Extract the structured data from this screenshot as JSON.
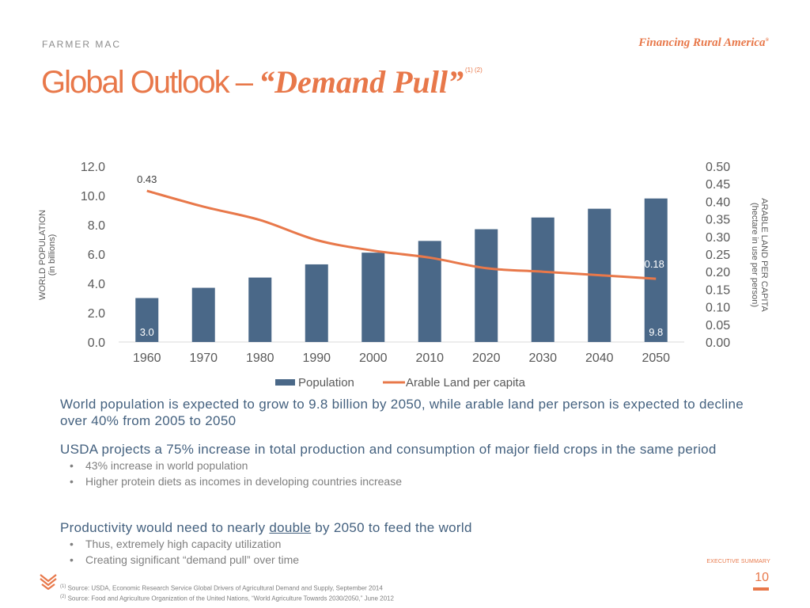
{
  "header": {
    "brand": "FARMER MAC",
    "tagline": "Financing Rural America",
    "tagline_mark": "®",
    "title_plain": "Global Outlook – ",
    "title_italic": "“Demand Pull”",
    "title_refs": "(1) (2)"
  },
  "chart_data": {
    "type": "bar",
    "title": "",
    "categories": [
      "1960",
      "1970",
      "1980",
      "1990",
      "2000",
      "2010",
      "2020",
      "2030",
      "2040",
      "2050"
    ],
    "series": [
      {
        "name": "Population",
        "type": "bar",
        "axis": "left",
        "color": "#4a6888",
        "values": [
          3.0,
          3.7,
          4.4,
          5.3,
          6.1,
          6.9,
          7.7,
          8.5,
          9.1,
          9.8
        ]
      },
      {
        "name": "Arable Land per capita",
        "type": "line",
        "axis": "right",
        "color": "#e8784a",
        "values": [
          0.43,
          0.385,
          0.347,
          0.29,
          0.26,
          0.24,
          0.21,
          0.2,
          0.19,
          0.18
        ]
      }
    ],
    "data_labels": [
      {
        "series": "Population",
        "category": "1960",
        "text": "3.0"
      },
      {
        "series": "Population",
        "category": "2050",
        "text": "9.8"
      },
      {
        "series": "Arable Land per capita",
        "category": "1960",
        "text": "0.43"
      },
      {
        "series": "Arable Land per capita",
        "category": "2050",
        "text": "0.18"
      }
    ],
    "ylabel": "WORLD POPULATION",
    "ylabel_sub": "(in billions)",
    "y2label": "ARABLE LAND PER CAPITA",
    "y2label_sub": "(hectare in use per person)",
    "ylim": [
      0,
      12
    ],
    "yticks": [
      "0.0",
      "2.0",
      "4.0",
      "6.0",
      "8.0",
      "10.0",
      "12.0"
    ],
    "y2lim": [
      0,
      0.5
    ],
    "y2ticks": [
      "0.00",
      "0.05",
      "0.10",
      "0.15",
      "0.20",
      "0.25",
      "0.30",
      "0.35",
      "0.40",
      "0.45",
      "0.50"
    ],
    "grid": false,
    "legend": "bottom"
  },
  "body": {
    "p1": "World population is expected to grow to 9.8 billion by 2050, while arable land per person is expected to decline over 40% from 2005 to 2050",
    "p2": "USDA projects a 75% increase in total production and consumption of major field crops in the same period",
    "p2_bullets": [
      "43% increase in world population",
      "Higher protein diets as incomes in developing countries increase"
    ],
    "p3_before": "Productivity would need to nearly ",
    "p3_underlined": "double",
    "p3_after": " by 2050 to feed the world",
    "p3_bullets": [
      "Thus, extremely high capacity utilization",
      "Creating significant “demand pull” over time"
    ]
  },
  "footer": {
    "section": "EXECUTIVE SUMMARY",
    "page_number": "10",
    "footnote1_ref": "(1)",
    "footnote1": " Source: USDA, Economic Research Service Global Drivers of Agricultural Demand and Supply, September 2014",
    "footnote2_ref": "(2)",
    "footnote2": " Source: Food and Agriculture Organization of the United Nations, “World Agriculture Towards 2030/2050,” June 2012",
    "bullet_glyph": "•"
  }
}
